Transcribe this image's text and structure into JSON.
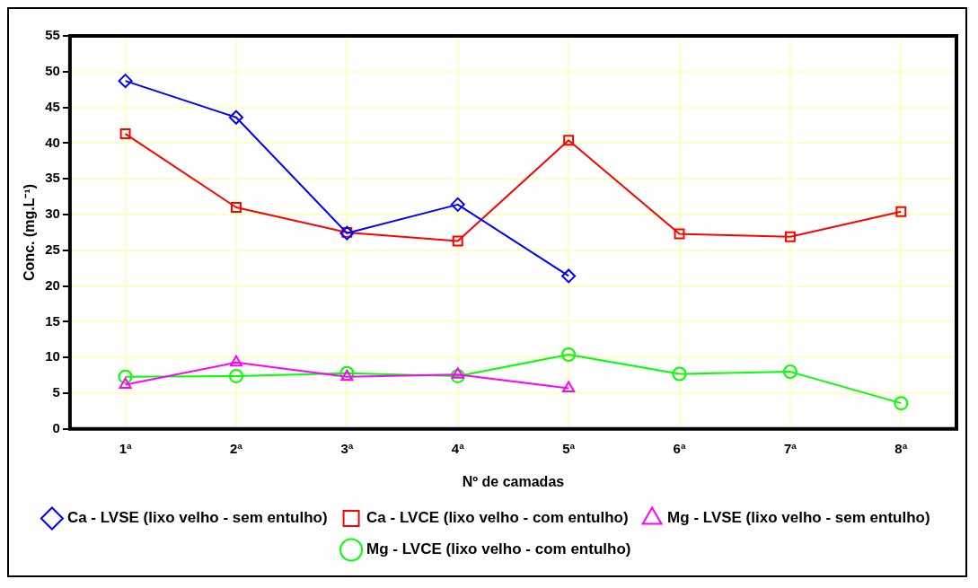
{
  "chart_data": {
    "type": "line",
    "xlabel": "Nº de camadas",
    "ylabel": "Conc. (mg.L⁻¹)",
    "categories": [
      "1ª",
      "2ª",
      "3ª",
      "4ª",
      "5ª",
      "6ª",
      "7ª",
      "8ª"
    ],
    "ylim": [
      0,
      55
    ],
    "yticks": [
      0,
      5,
      10,
      15,
      20,
      25,
      30,
      35,
      40,
      45,
      50,
      55
    ],
    "grid": true,
    "legend": "bottom",
    "series": [
      {
        "name": "Ca - LVSE (lixo velho - sem entulho)",
        "color": "#0000ff",
        "marker": "diamond",
        "values": [
          48.7,
          43.6,
          27.4,
          31.4,
          21.4,
          null,
          null,
          null
        ]
      },
      {
        "name": "Ca - LVCE (lixo velho - com entulho)",
        "color": "#ff0000",
        "marker": "square",
        "values": [
          41.3,
          31.0,
          27.5,
          26.3,
          40.4,
          27.3,
          26.9,
          30.4
        ]
      },
      {
        "name": "Mg - LVSE (lixo velho - sem entulho)",
        "color": "#ff00ff",
        "marker": "triangle",
        "values": [
          6.2,
          9.3,
          7.3,
          7.6,
          5.7,
          null,
          null,
          null
        ]
      },
      {
        "name": "Mg - LVCE (lixo velho - com entulho)",
        "color": "#00ff00",
        "marker": "circle",
        "values": [
          7.3,
          7.4,
          7.8,
          7.4,
          10.4,
          7.7,
          8.0,
          3.6
        ]
      }
    ]
  }
}
